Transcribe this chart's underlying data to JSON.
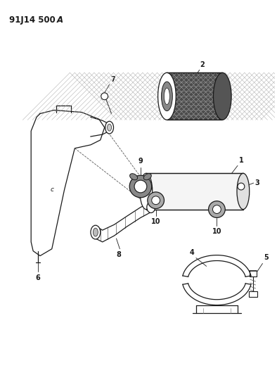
{
  "bg_color": "#ffffff",
  "line_color": "#1a1a1a",
  "figsize": [
    3.94,
    5.33
  ],
  "dpi": 100,
  "title": "91J14 500A",
  "label_fontsize": 7,
  "header_fontsize": 8.5
}
